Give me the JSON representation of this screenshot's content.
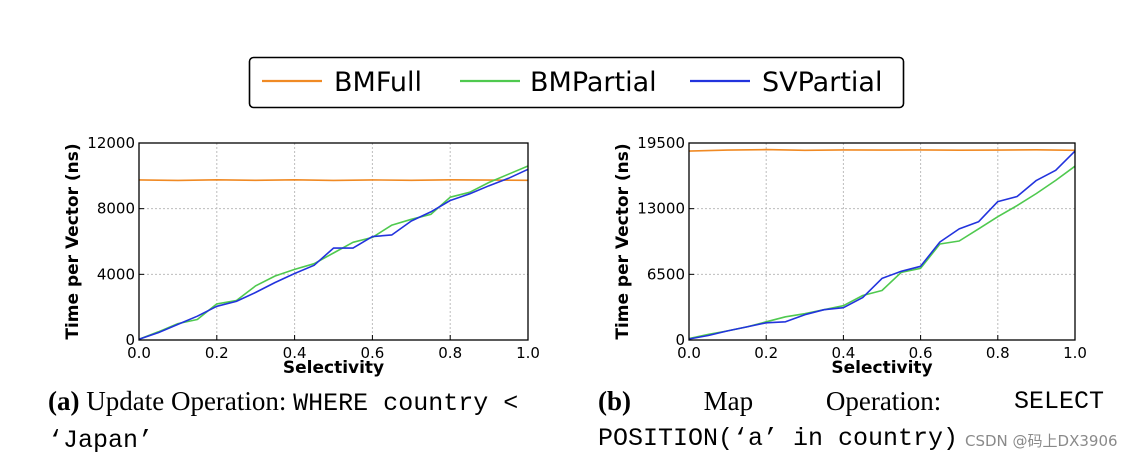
{
  "legend": {
    "entries": [
      {
        "name": "BMFull",
        "color": "#f08a24"
      },
      {
        "name": "BMPartial",
        "color": "#4fc94f"
      },
      {
        "name": "SVPartial",
        "color": "#2233dd"
      }
    ]
  },
  "chart_data": [
    {
      "type": "line",
      "xlabel": "Selectivity",
      "ylabel": "Time per Vector (ns)",
      "xlim": [
        0.0,
        1.0
      ],
      "ylim": [
        0,
        12000
      ],
      "xticks": [
        "0.0",
        "0.2",
        "0.4",
        "0.6",
        "0.8",
        "1.0"
      ],
      "yticks": [
        "0",
        "4000",
        "8000",
        "12000"
      ],
      "ytick_values": [
        0,
        4000,
        8000,
        12000
      ],
      "grid": true,
      "series": [
        {
          "name": "BMFull",
          "color": "#f08a24",
          "x": [
            0.0,
            0.1,
            0.2,
            0.3,
            0.4,
            0.5,
            0.6,
            0.7,
            0.8,
            0.9,
            1.0
          ],
          "values": [
            9750,
            9720,
            9760,
            9730,
            9760,
            9720,
            9750,
            9730,
            9760,
            9740,
            9730
          ]
        },
        {
          "name": "BMPartial",
          "color": "#4fc94f",
          "x": [
            0.0,
            0.05,
            0.1,
            0.15,
            0.2,
            0.25,
            0.3,
            0.35,
            0.4,
            0.45,
            0.5,
            0.55,
            0.6,
            0.65,
            0.7,
            0.75,
            0.8,
            0.85,
            0.9,
            0.95,
            1.0
          ],
          "values": [
            50,
            500,
            1000,
            1250,
            2200,
            2400,
            3300,
            3900,
            4300,
            4650,
            5300,
            5950,
            6250,
            7000,
            7350,
            7650,
            8700,
            9000,
            9600,
            10100,
            10600
          ]
        },
        {
          "name": "SVPartial",
          "color": "#2233dd",
          "x": [
            0.0,
            0.05,
            0.1,
            0.15,
            0.2,
            0.25,
            0.3,
            0.35,
            0.4,
            0.45,
            0.5,
            0.55,
            0.6,
            0.65,
            0.7,
            0.75,
            0.8,
            0.85,
            0.9,
            0.95,
            1.0
          ],
          "values": [
            50,
            450,
            950,
            1450,
            2050,
            2350,
            2900,
            3500,
            4050,
            4550,
            5600,
            5600,
            6300,
            6400,
            7250,
            7800,
            8500,
            8900,
            9400,
            9850,
            10400
          ]
        }
      ]
    },
    {
      "type": "line",
      "xlabel": "Selectivity",
      "ylabel": "Time per Vector (ns)",
      "xlim": [
        0.0,
        1.0
      ],
      "ylim": [
        0,
        19500
      ],
      "xticks": [
        "0.0",
        "0.2",
        "0.4",
        "0.6",
        "0.8",
        "1.0"
      ],
      "yticks": [
        "0",
        "6500",
        "13000",
        "19500"
      ],
      "ytick_values": [
        0,
        6500,
        13000,
        19500
      ],
      "grid": true,
      "series": [
        {
          "name": "BMFull",
          "color": "#f08a24",
          "x": [
            0.0,
            0.1,
            0.2,
            0.3,
            0.4,
            0.5,
            0.6,
            0.7,
            0.8,
            0.9,
            1.0
          ],
          "values": [
            18700,
            18800,
            18850,
            18780,
            18820,
            18800,
            18820,
            18790,
            18800,
            18830,
            18780
          ]
        },
        {
          "name": "BMPartial",
          "color": "#4fc94f",
          "x": [
            0.0,
            0.05,
            0.1,
            0.15,
            0.2,
            0.25,
            0.3,
            0.35,
            0.4,
            0.45,
            0.5,
            0.55,
            0.6,
            0.65,
            0.7,
            0.75,
            0.8,
            0.85,
            0.9,
            0.95,
            1.0
          ],
          "values": [
            150,
            550,
            900,
            1300,
            1800,
            2300,
            2600,
            3000,
            3400,
            4400,
            4900,
            6700,
            7100,
            9500,
            9800,
            11000,
            12200,
            13300,
            14500,
            15800,
            17200
          ]
        },
        {
          "name": "SVPartial",
          "color": "#2233dd",
          "x": [
            0.0,
            0.05,
            0.1,
            0.15,
            0.2,
            0.25,
            0.3,
            0.35,
            0.4,
            0.45,
            0.5,
            0.55,
            0.6,
            0.65,
            0.7,
            0.75,
            0.8,
            0.85,
            0.9,
            0.95,
            1.0
          ],
          "values": [
            100,
            450,
            900,
            1300,
            1700,
            1800,
            2500,
            3000,
            3200,
            4200,
            6100,
            6800,
            7300,
            9700,
            11000,
            11700,
            13700,
            14200,
            15800,
            16800,
            18700
          ]
        }
      ]
    }
  ],
  "captions": {
    "a": {
      "tag": "(a)",
      "text": "Update Operation:",
      "code1": "WHERE country <",
      "code2": "‘Japan’"
    },
    "b": {
      "tag": "(b)",
      "w1": "Map",
      "w2": "Operation:",
      "code1": "SELECT",
      "code2": "POSITION(‘a’ in country)"
    }
  },
  "watermark": "CSDN @码上DX3906"
}
